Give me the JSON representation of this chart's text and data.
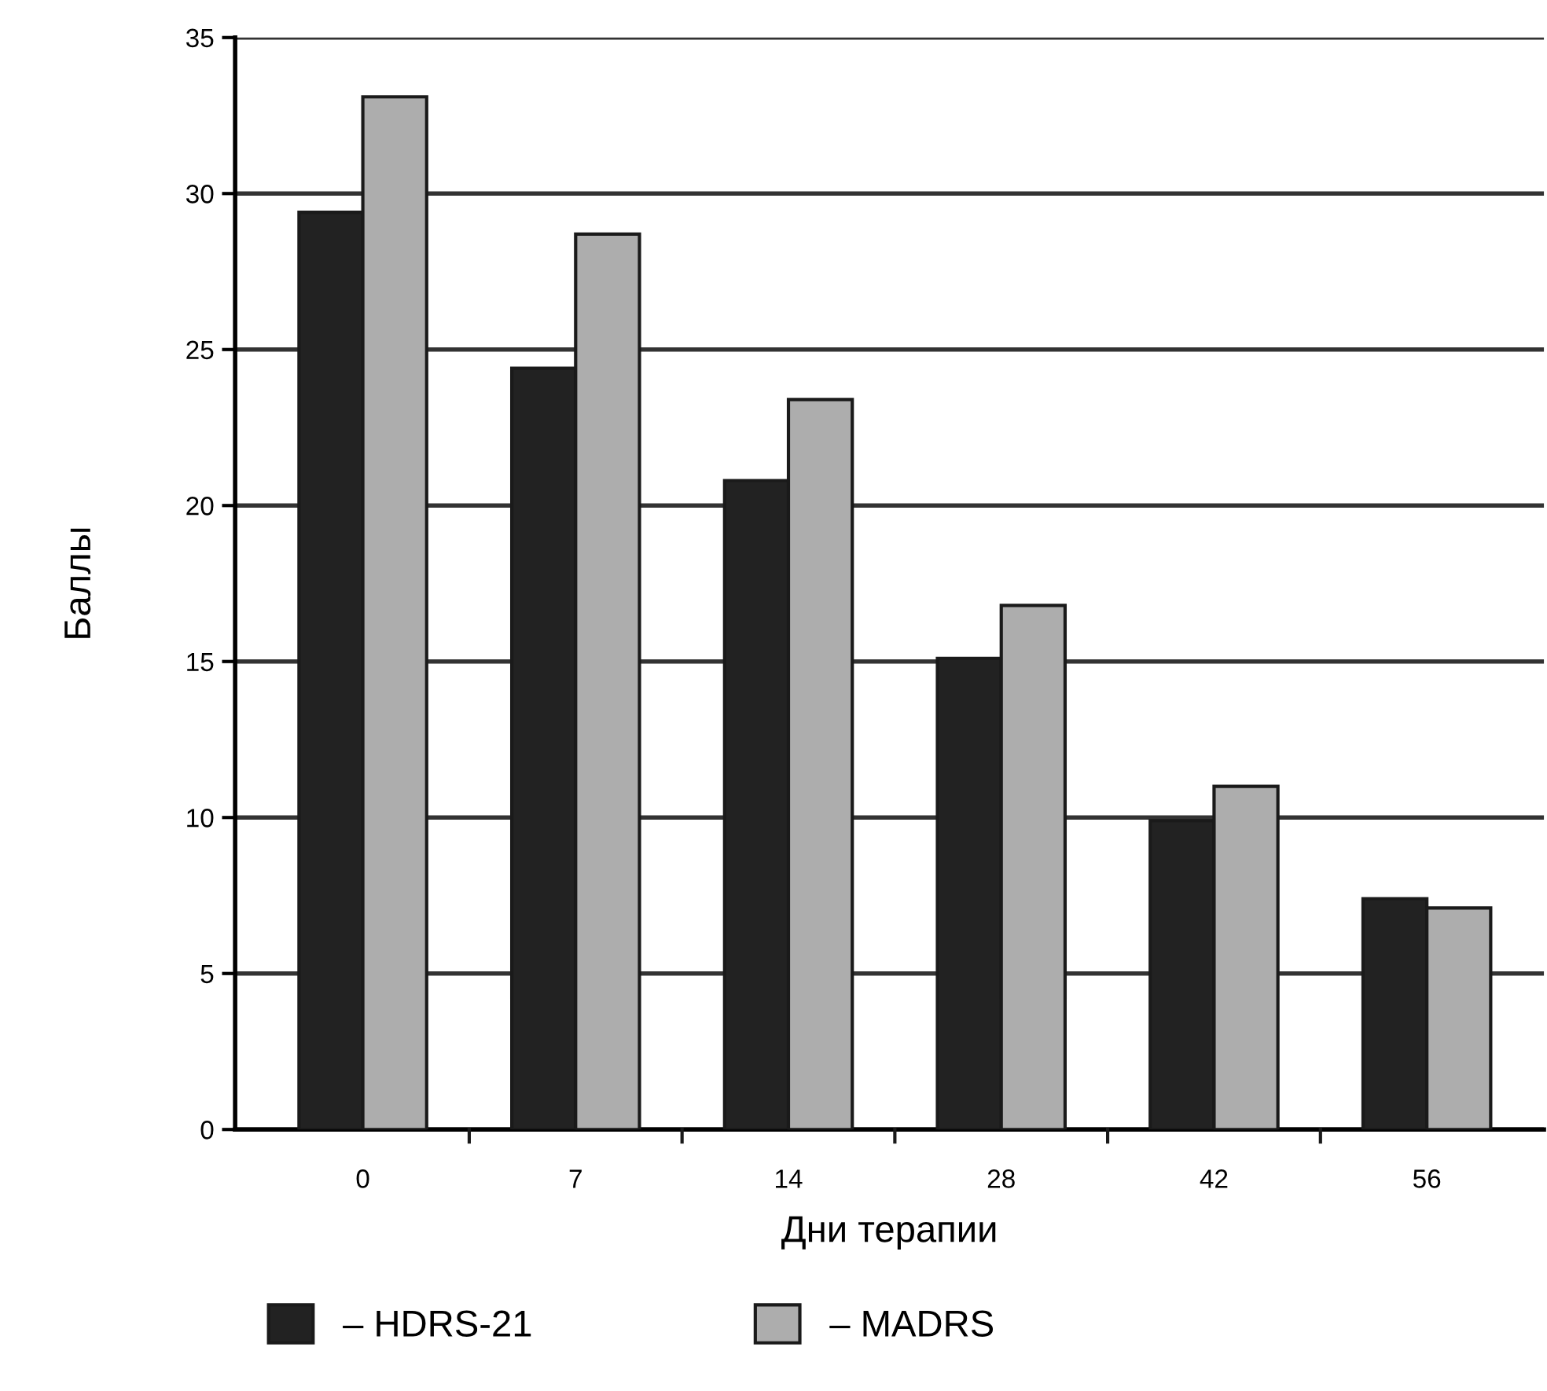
{
  "chart_data": {
    "type": "bar",
    "xlabel": "Дни терапии",
    "ylabel": "Баллы",
    "categories": [
      "0",
      "7",
      "14",
      "28",
      "42",
      "56"
    ],
    "series": [
      {
        "name": "– HDRS-21",
        "color": "#222222",
        "values": [
          29.4,
          24.4,
          20.8,
          15.1,
          9.9,
          7.4
        ]
      },
      {
        "name": "– MADRS",
        "color": "#adadad",
        "values": [
          33.1,
          28.7,
          23.4,
          16.8,
          11.0,
          7.1
        ]
      }
    ],
    "ylim": [
      0,
      35
    ],
    "yticks": [
      0,
      5,
      10,
      15,
      20,
      25,
      30,
      35
    ],
    "grid": "y",
    "legend": "bottom"
  }
}
